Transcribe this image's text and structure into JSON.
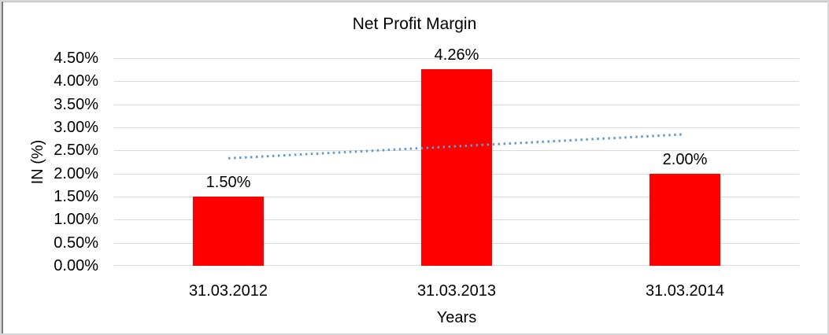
{
  "chart_data": {
    "type": "bar",
    "title": "Net Profit Margin",
    "xlabel": "Years",
    "ylabel": "IN (%)",
    "categories": [
      "31.03.2012",
      "31.03.2013",
      "31.03.2014"
    ],
    "values": [
      1.5,
      4.26,
      2.0
    ],
    "data_labels": [
      "1.50%",
      "4.26%",
      "2.00%"
    ],
    "ylim": [
      0,
      4.5
    ],
    "ytick_step": 0.5,
    "ytick_labels": [
      "0.00%",
      "0.50%",
      "1.00%",
      "1.50%",
      "2.00%",
      "2.50%",
      "3.00%",
      "3.50%",
      "4.00%",
      "4.50%"
    ],
    "grid": true,
    "legend": false,
    "bar_color": "#FF0000",
    "gridline_color": "#D9D9D9",
    "text_color": "#000000",
    "trendline": {
      "style": "dotted",
      "color": "#5B9BD5",
      "start_value": 2.33,
      "end_value": 2.85
    }
  }
}
